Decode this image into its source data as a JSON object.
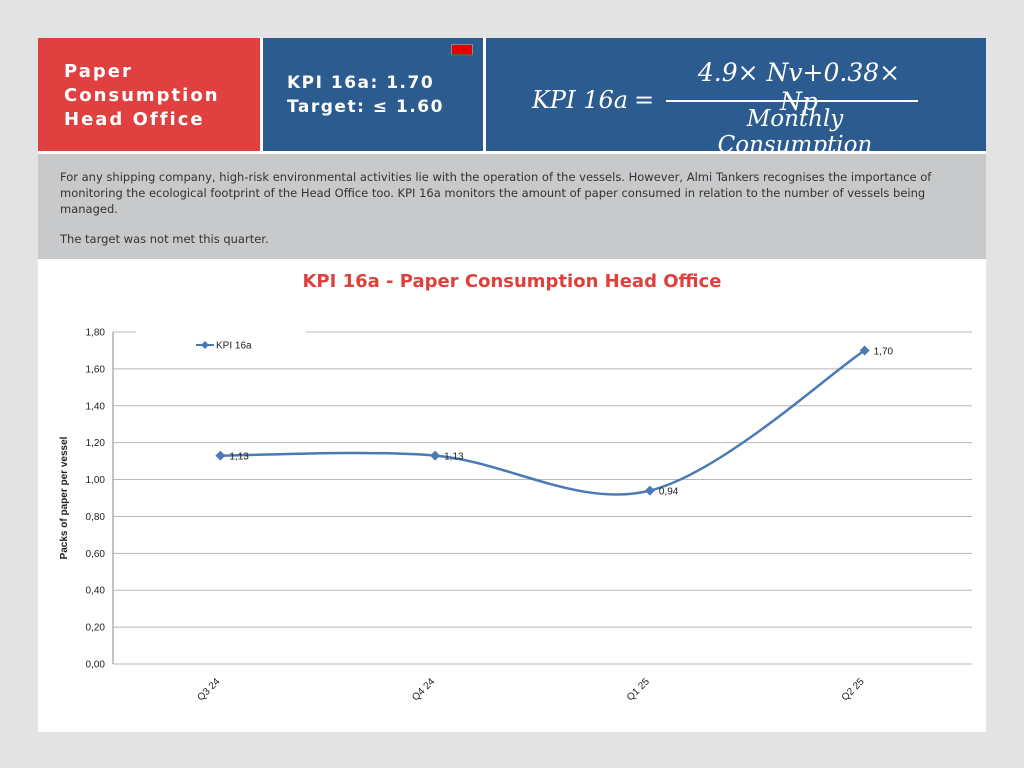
{
  "header": {
    "title": "Paper\nConsumption\nHead Office",
    "title_lines": [
      "Paper",
      "Consumption",
      "Head Office"
    ],
    "kpi_value": "KPI 16a: 1.70",
    "target": "Target: ≤ 1.60",
    "status_color": "#e00000"
  },
  "formula": {
    "lhs": "KPI 16a",
    "equals": "=",
    "numerator": "4.9× Nv+0.38× Np",
    "denominator": "Monthly Consumption"
  },
  "description": {
    "paragraph1": "For any shipping company, high-risk environmental activities lie with the operation of the vessels. However, Almi Tankers recognises the importance of monitoring the ecological footprint of the Head Office too. KPI 16a monitors the amount of paper consumed in relation to the number of vessels being managed.",
    "paragraph2": "The target was not met this quarter."
  },
  "colors": {
    "title_red": "#e04040",
    "header_blue": "#2c5c8f",
    "series_blue": "#4a7ab5"
  },
  "chart_data": {
    "type": "line",
    "title": "KPI 16a  - Paper Consumption Head Office",
    "xlabel": "",
    "ylabel": "Packs of paper per vessel",
    "categories": [
      "Q3 24",
      "Q4 24",
      "Q1 25",
      "Q2 25"
    ],
    "series": [
      {
        "name": "KPI 16a",
        "values": [
          1.13,
          1.13,
          0.94,
          1.7
        ],
        "labels": [
          "1,13",
          "1,13",
          "0,94",
          "1,70"
        ]
      }
    ],
    "ylim": [
      0,
      1.8
    ],
    "yticks": [
      "0,00",
      "0,20",
      "0,40",
      "0,60",
      "0,80",
      "1,00",
      "1,20",
      "1,40",
      "1,60",
      "1,80"
    ],
    "grid": true,
    "smooth": true,
    "legend": "top-left"
  }
}
